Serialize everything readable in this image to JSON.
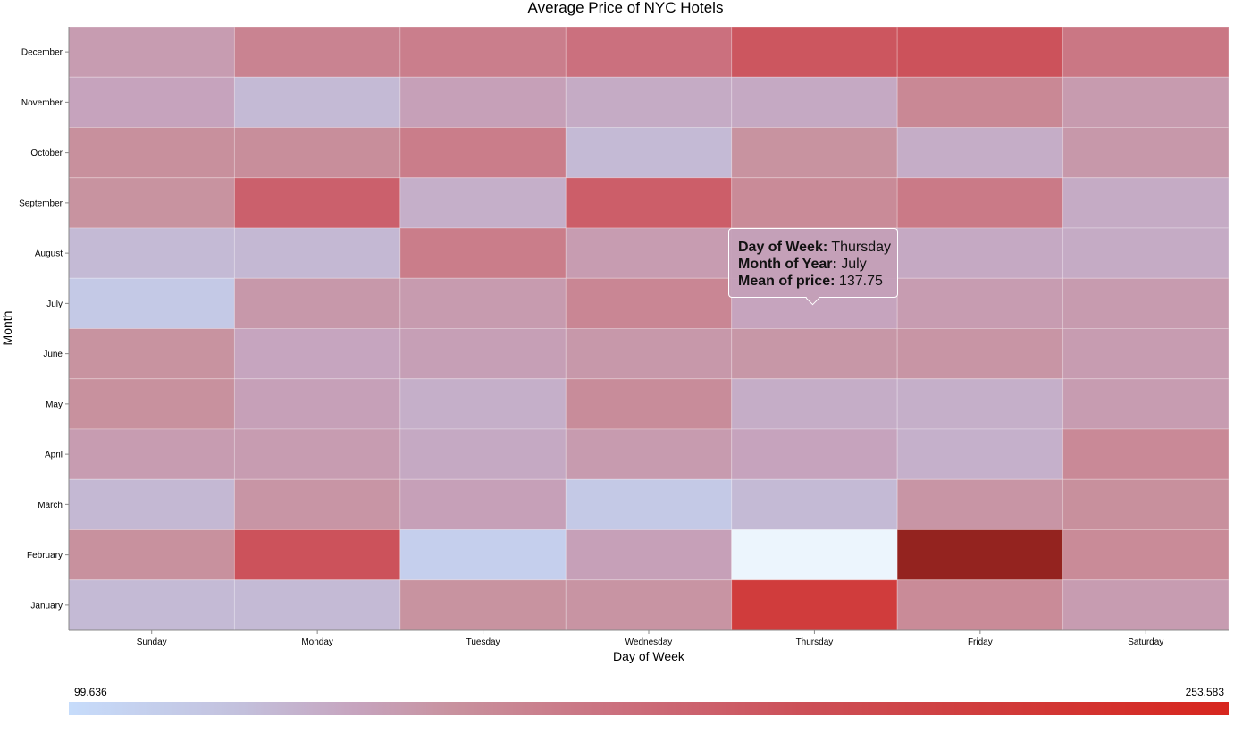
{
  "chart_data": {
    "type": "heatmap",
    "title": "Average Price of NYC Hotels",
    "xlabel": "Day of Week",
    "ylabel": "Month",
    "x_categories": [
      "Sunday",
      "Monday",
      "Tuesday",
      "Wednesday",
      "Thursday",
      "Friday",
      "Saturday"
    ],
    "y_categories": [
      "December",
      "November",
      "October",
      "September",
      "August",
      "July",
      "June",
      "May",
      "April",
      "March",
      "February",
      "January"
    ],
    "values": [
      [
        143,
        160,
        163,
        172,
        192,
        195,
        168
      ],
      [
        138,
        126,
        140,
        134,
        135,
        157,
        144
      ],
      [
        152,
        153,
        164,
        126,
        150,
        133,
        146
      ],
      [
        150,
        184,
        132,
        186,
        155,
        166,
        134
      ],
      [
        126,
        127,
        164,
        143,
        141,
        135,
        134
      ],
      [
        115,
        146,
        144,
        158,
        137.75,
        143,
        144
      ],
      [
        150,
        137,
        141,
        146,
        147,
        148,
        143
      ],
      [
        151,
        140,
        132,
        154,
        133,
        132,
        143
      ],
      [
        143,
        143,
        135,
        144,
        138,
        131,
        156
      ],
      [
        127,
        148,
        140,
        115,
        126,
        148,
        152
      ],
      [
        151,
        195,
        110,
        140,
        85,
        290,
        155
      ],
      [
        126,
        126,
        150,
        149,
        221,
        155,
        143
      ]
    ],
    "colorbar": {
      "min_label": "99.636",
      "max_label": "253.583",
      "min": 99.636,
      "max": 253.583,
      "low_color": "#c6dcfb",
      "high_color": "#d7261e"
    },
    "grid": false,
    "legend": "bottom",
    "tooltip": {
      "day_label": "Day of Week:",
      "day_value": "Thursday",
      "month_label": "Month of Year:",
      "month_value": "July",
      "mean_label": "Mean of price:",
      "mean_value": "137.75"
    }
  }
}
